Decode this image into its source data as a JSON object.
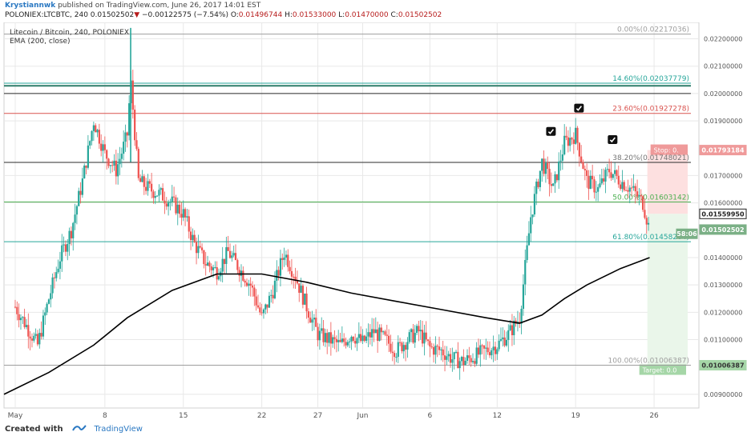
{
  "header": {
    "author": "Krystiannwk",
    "published_text": " published on TradingView.com, June 26, 2017 14:01 EST",
    "symbol": "POLONIEX:LTCBTC, 240",
    "last": "0.01502502",
    "down_arrow": "▼",
    "change": "−0.00122575 (−7.54%)",
    "o_label": "O:",
    "o_value": "0.01496744",
    "h_label": "H:",
    "h_value": "0.01533000",
    "l_label": "L:",
    "l_value": "0.01470000",
    "c_label": "C:",
    "c_value": "0.01502502"
  },
  "legend": {
    "title": "Litecoin / Bitcoin, 240, POLONIEX",
    "indicator": "EMA (200, close)"
  },
  "footer": {
    "created_with": "Created with",
    "brand": "TradingView"
  },
  "chart_data": {
    "type": "candlestick",
    "ylim": [
      0.0085,
      0.0226
    ],
    "y_ticks": [
      "0.02200000",
      "0.02100000",
      "0.02000000",
      "0.01900000",
      "0.01700000",
      "0.01600000",
      "0.01400000",
      "0.01300000",
      "0.01200000",
      "0.01100000",
      "0.00900000"
    ],
    "x_ticks": [
      "May",
      "8",
      "15",
      "22",
      "27",
      "Jun",
      "6",
      "12",
      "19",
      "26"
    ],
    "x_tick_pos": [
      0.0,
      8.0,
      15.0,
      22.0,
      27.0,
      31.0,
      37.0,
      43.0,
      50.0,
      57.0
    ],
    "x_range": [
      -1.0,
      61.0
    ],
    "price_path": [
      [
        0,
        0.0122
      ],
      [
        1,
        0.0115
      ],
      [
        2,
        0.0108
      ],
      [
        3,
        0.0125
      ],
      [
        4,
        0.014
      ],
      [
        5,
        0.015
      ],
      [
        6,
        0.0168
      ],
      [
        7,
        0.019
      ],
      [
        8,
        0.0178
      ],
      [
        9,
        0.0172
      ],
      [
        10,
        0.0185
      ],
      [
        10.3,
        0.0205
      ],
      [
        11,
        0.0168
      ],
      [
        12,
        0.0165
      ],
      [
        13,
        0.0163
      ],
      [
        14,
        0.016
      ],
      [
        15,
        0.0156
      ],
      [
        16,
        0.0145
      ],
      [
        17,
        0.0138
      ],
      [
        18,
        0.0135
      ],
      [
        19,
        0.0142
      ],
      [
        20,
        0.0136
      ],
      [
        21,
        0.013
      ],
      [
        22,
        0.0118
      ],
      [
        23,
        0.0128
      ],
      [
        24,
        0.0142
      ],
      [
        25,
        0.0133
      ],
      [
        26,
        0.0122
      ],
      [
        27,
        0.0112
      ],
      [
        28,
        0.011
      ],
      [
        29,
        0.0108
      ],
      [
        30,
        0.0112
      ],
      [
        31,
        0.0109
      ],
      [
        32,
        0.0113
      ],
      [
        33,
        0.011
      ],
      [
        34,
        0.0106
      ],
      [
        35,
        0.011
      ],
      [
        36,
        0.0113
      ],
      [
        37,
        0.0107
      ],
      [
        38,
        0.0106
      ],
      [
        39,
        0.0103
      ],
      [
        40,
        0.0102
      ],
      [
        41,
        0.0104
      ],
      [
        42,
        0.0106
      ],
      [
        43,
        0.0108
      ],
      [
        44,
        0.0112
      ],
      [
        45,
        0.0118
      ],
      [
        46,
        0.0155
      ],
      [
        47,
        0.0175
      ],
      [
        48,
        0.0165
      ],
      [
        49,
        0.0182
      ],
      [
        50,
        0.0185
      ],
      [
        51,
        0.0168
      ],
      [
        52,
        0.0165
      ],
      [
        53,
        0.0172
      ],
      [
        54,
        0.0168
      ],
      [
        55,
        0.0165
      ],
      [
        56,
        0.016
      ],
      [
        56.6,
        0.015
      ]
    ],
    "ema_path": [
      [
        -1,
        0.009
      ],
      [
        3,
        0.0098
      ],
      [
        7,
        0.0108
      ],
      [
        10,
        0.0118
      ],
      [
        14,
        0.0128
      ],
      [
        18,
        0.0134
      ],
      [
        22,
        0.0134
      ],
      [
        26,
        0.0131
      ],
      [
        30,
        0.0127
      ],
      [
        34,
        0.0124
      ],
      [
        38,
        0.0121
      ],
      [
        42,
        0.0118
      ],
      [
        45,
        0.0116
      ],
      [
        47,
        0.0119
      ],
      [
        49,
        0.0125
      ],
      [
        51,
        0.013
      ],
      [
        54,
        0.0136
      ],
      [
        56.6,
        0.014
      ]
    ],
    "horizontal_lines": [
      {
        "price": 0.02028,
        "color": "#2e7d6a",
        "width": 2
      },
      {
        "price": 0.02,
        "color": "#2b2b2b",
        "width": 1
      },
      {
        "price": 0.01748,
        "color": "#2b2b2b",
        "width": 1
      }
    ],
    "fib_levels": [
      {
        "label": "0.00%(0.02217036)",
        "price": 0.02217036,
        "color": "#9e9e9e"
      },
      {
        "label": "14.60%(0.02037779)",
        "price": 0.02037779,
        "color": "#26a69a"
      },
      {
        "label": "23.60%(0.01927278)",
        "price": 0.01927278,
        "color": "#d9534f"
      },
      {
        "label": "38.20%(0.01748021)",
        "price": 0.01748021,
        "color": "#757575"
      },
      {
        "label": "50.00%(0.01603142)",
        "price": 0.01603142,
        "color": "#4caf50"
      },
      {
        "label": "61.80%(0.01458264)",
        "price": 0.01458264,
        "color": "#26a69a"
      },
      {
        "label": "100.00%(0.01006387)",
        "price": 0.01006387,
        "color": "#9e9e9e"
      }
    ],
    "price_tags": [
      {
        "text": "0.01793184",
        "price": 0.01793184,
        "bg": "#ef9a9a",
        "fg": "#ffffff"
      },
      {
        "text": "0.01559950",
        "price": 0.0155995,
        "bg": "#ffffff",
        "fg": "#222222",
        "border": "#222222"
      },
      {
        "text": "0.01502502",
        "price": 0.01502502,
        "bg": "#7bb086",
        "fg": "#ffffff"
      },
      {
        "text": "58:06",
        "price": 0.01487,
        "bg": "#7bb086",
        "fg": "#ffffff"
      },
      {
        "text": "0.01006387",
        "price": 0.01006387,
        "bg": "#a5d6a7",
        "fg": "#333333"
      }
    ],
    "stop_label": "Stop: 0.",
    "target_label": "Target: 0.0",
    "trade": {
      "entry": 0.0156,
      "stop": 0.01793184,
      "target": 0.01006387,
      "x_start": 56.4,
      "x_end": 60.0
    },
    "checkmarks": [
      {
        "x": 50.3,
        "price": 0.01945
      },
      {
        "x": 47.8,
        "price": 0.0186
      },
      {
        "x": 53.3,
        "price": 0.0183
      }
    ],
    "colors": {
      "up": "#26a69a",
      "down": "#ef5350",
      "ema": "#000000",
      "grid": "#e8e8e8",
      "axis": "#555555"
    }
  }
}
